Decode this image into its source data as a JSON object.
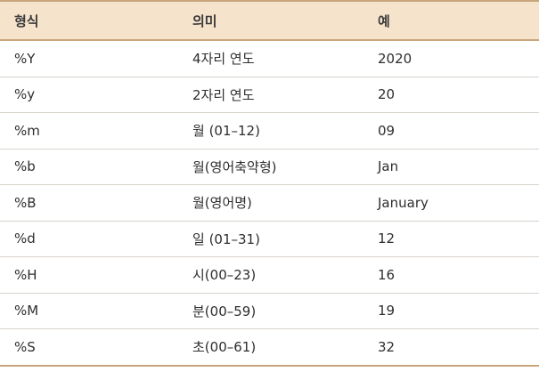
{
  "table": {
    "headers": [
      "형식",
      "의미",
      "예"
    ],
    "rows": [
      [
        "%Y",
        "4자리 연도",
        "2020"
      ],
      [
        "%y",
        "2자리 연도",
        "20"
      ],
      [
        "%m",
        "월 (01–12)",
        "09"
      ],
      [
        "%b",
        "월(영어축약형)",
        "Jan"
      ],
      [
        "%B",
        "월(영어명)",
        "January"
      ],
      [
        "%d",
        "일 (01–31)",
        "12"
      ],
      [
        "%H",
        "시(00–23)",
        "16"
      ],
      [
        "%M",
        "분(00–59)",
        "19"
      ],
      [
        "%S",
        "초(00–61)",
        "32"
      ]
    ]
  },
  "colors": {
    "header_bg": "#f6e3cc",
    "rule": "#c9a57c",
    "row_divider": "#d9d3cc"
  }
}
